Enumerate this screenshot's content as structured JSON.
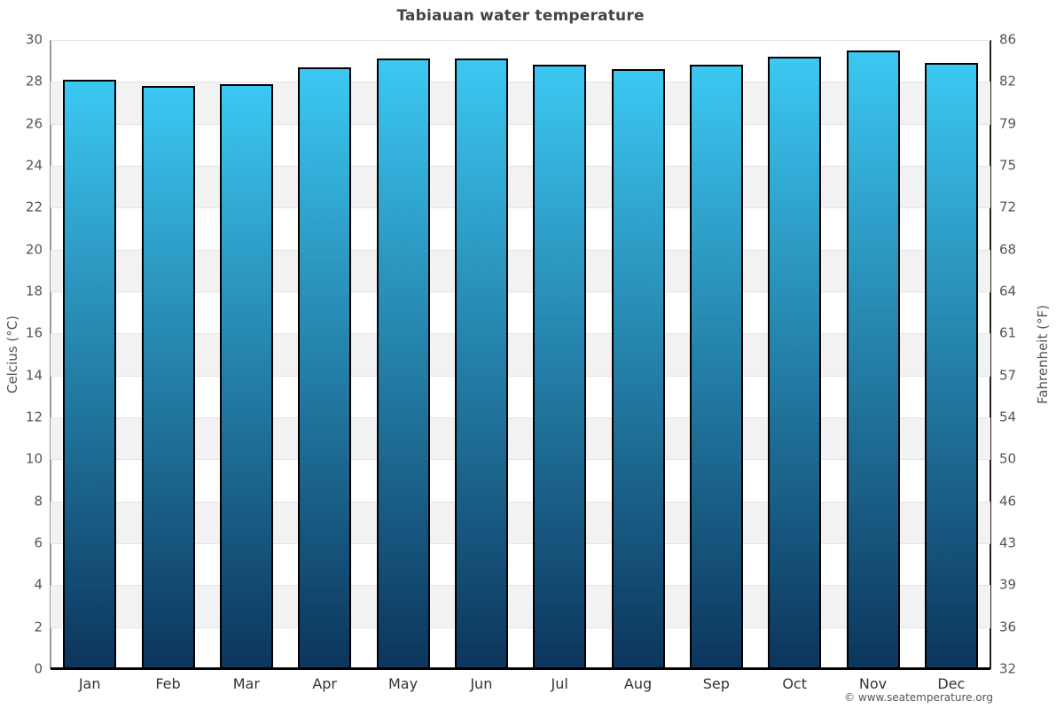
{
  "page": {
    "title": "Tabiauan water temperature"
  },
  "footer": {
    "credit": "© www.seatemperature.org"
  },
  "chart_data": {
    "type": "bar",
    "title": "Tabiauan water temperature",
    "categories": [
      "Jan",
      "Feb",
      "Mar",
      "Apr",
      "May",
      "Jun",
      "Jul",
      "Aug",
      "Sep",
      "Oct",
      "Nov",
      "Dec"
    ],
    "series": [
      {
        "name": "Water temperature (°C)",
        "values": [
          28.1,
          27.8,
          27.9,
          28.7,
          29.1,
          29.1,
          28.8,
          28.6,
          28.8,
          29.2,
          29.5,
          28.9
        ]
      }
    ],
    "xlabel": "",
    "ylabel_left": "Celcius (°C)",
    "ylabel_right": "Fahrenheit (°F)",
    "ylim_celsius": [
      0,
      30
    ],
    "ylim_fahrenheit": [
      32,
      86
    ],
    "celsius_ticks": [
      0,
      2,
      4,
      6,
      8,
      10,
      12,
      14,
      16,
      18,
      20,
      22,
      24,
      26,
      28,
      30
    ],
    "fahrenheit_tick_labels": [
      "32",
      "36",
      "39",
      "43",
      "46",
      "50",
      "54",
      "57",
      "61",
      "64",
      "68",
      "72",
      "75",
      "79",
      "82",
      "86"
    ],
    "grid": "alternating horizontal bands every 2°C with light gridlines",
    "legend_position": "none",
    "colors": {
      "bar_gradient_top": "#3bc8f2",
      "bar_gradient_bottom": "#0c355c",
      "bar_border": "#000000",
      "band_shade": "#f2f2f2",
      "band_white": "#ffffff",
      "gridline": "#e4e4e4",
      "axis_left": "#999999",
      "axis_right": "#222222",
      "axis_bottom": "#000000",
      "title_text": "#444444",
      "tick_text": "#555555",
      "month_text": "#333333"
    }
  }
}
